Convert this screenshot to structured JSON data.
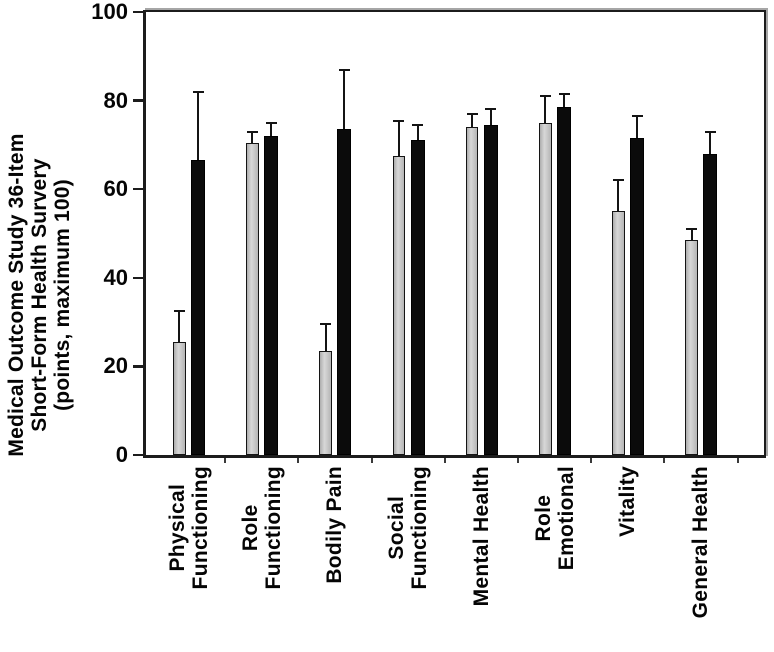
{
  "figure": {
    "background": "#ffffff",
    "axis_color": "#1c1c1c",
    "box_shadow_color": "#a6a6a6"
  },
  "chart_data": {
    "type": "bar",
    "title": "",
    "xlabel": "",
    "ylabel": "Medical Outcome Study 36-Item\nShort-Form Health Survery\n(points, maximum 100)",
    "ylim": [
      0,
      100
    ],
    "yticks": [
      0,
      20,
      40,
      60,
      80,
      100
    ],
    "grid": false,
    "legend_position": "none",
    "categories": [
      "Physical\nFunctioning",
      "Role\nFunctioning",
      "Bodily Pain",
      "Social\nFunctioning",
      "Mental Health",
      "Role\nEmotional",
      "Vitality",
      "General Health"
    ],
    "series": [
      {
        "name": "gray-bars",
        "color": "#c3c3c3",
        "values": [
          25.5,
          70.5,
          23.5,
          67.5,
          74,
          75,
          55,
          48.5
        ],
        "upper_errors": [
          7,
          2.5,
          6,
          8,
          3,
          6,
          7,
          2.5
        ]
      },
      {
        "name": "black-bars",
        "color": "#0b0b0b",
        "values": [
          66.5,
          72,
          73.5,
          71,
          74.5,
          78.5,
          71.5,
          68
        ],
        "upper_errors": [
          15.5,
          3,
          13.5,
          3.5,
          3.5,
          3,
          5,
          5
        ]
      }
    ]
  }
}
